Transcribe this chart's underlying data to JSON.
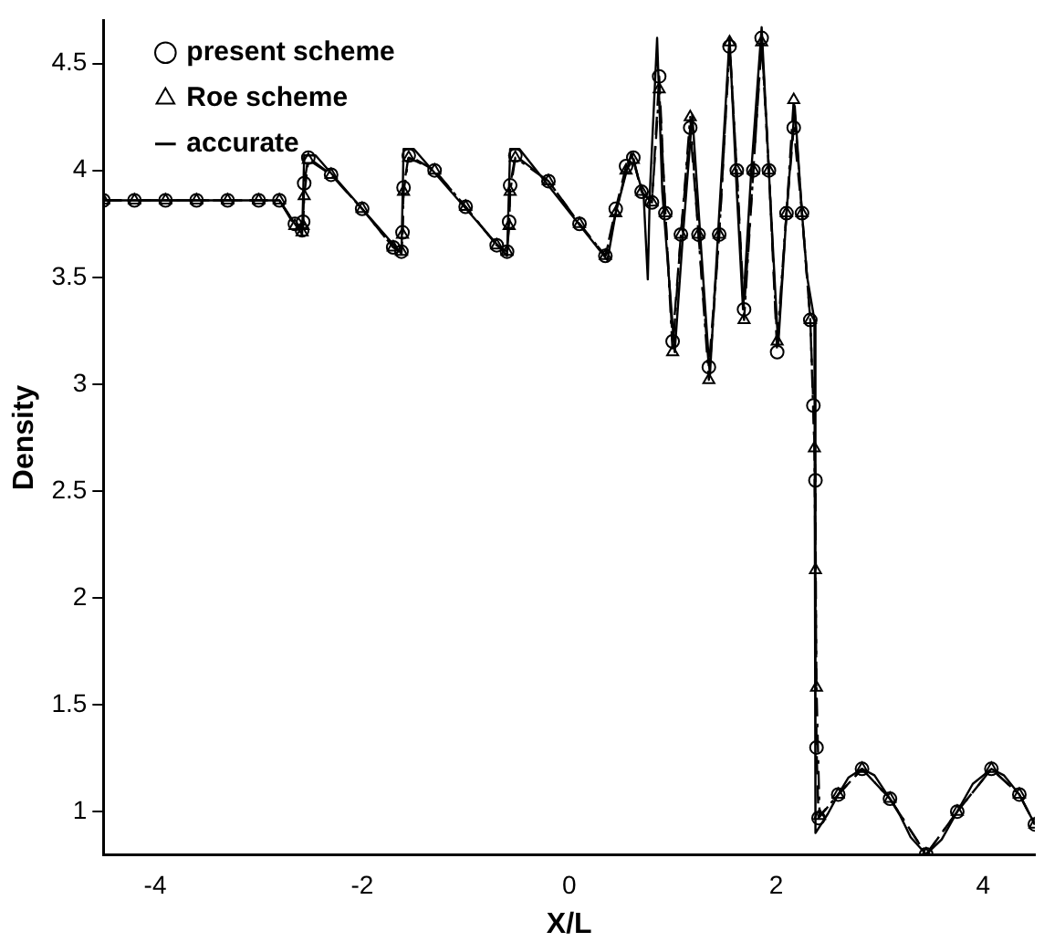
{
  "chart_data": {
    "type": "line",
    "xlabel": "X/L",
    "ylabel": "Density",
    "xlim": [
      -4.5,
      4.5
    ],
    "xticks": [
      -4,
      -2,
      0,
      2,
      4
    ],
    "ylim": [
      0.8,
      4.7
    ],
    "yticks": [
      1,
      1.5,
      2,
      2.5,
      3,
      3.5,
      4,
      4.5
    ],
    "grid": false,
    "legend": "left",
    "series": [
      {
        "name": "present scheme",
        "color": "#000000",
        "marker": "circle",
        "line_style": "dashed",
        "x": [
          -4.5,
          -4.2,
          -3.9,
          -3.6,
          -3.3,
          -3.0,
          -2.8,
          -2.65,
          -2.58,
          -2.57,
          -2.56,
          -2.52,
          -2.3,
          -2.0,
          -1.7,
          -1.62,
          -1.61,
          -1.6,
          -1.55,
          -1.3,
          -1.0,
          -0.7,
          -0.6,
          -0.58,
          -0.57,
          -0.52,
          -0.2,
          0.1,
          0.35,
          0.45,
          0.55,
          0.62,
          0.7,
          0.8,
          0.87,
          0.93,
          1.0,
          1.08,
          1.17,
          1.25,
          1.35,
          1.45,
          1.55,
          1.62,
          1.69,
          1.78,
          1.86,
          1.93,
          2.01,
          2.1,
          2.17,
          2.25,
          2.33,
          2.36,
          2.38,
          2.39,
          2.41,
          2.6,
          2.83,
          3.1,
          3.45,
          3.75,
          4.08,
          4.35,
          4.5
        ],
        "values": [
          3.86,
          3.86,
          3.86,
          3.86,
          3.86,
          3.86,
          3.86,
          3.75,
          3.72,
          3.76,
          3.94,
          4.06,
          3.98,
          3.82,
          3.64,
          3.62,
          3.71,
          3.92,
          4.07,
          4.0,
          3.83,
          3.65,
          3.62,
          3.76,
          3.93,
          4.07,
          3.95,
          3.75,
          3.6,
          3.82,
          4.02,
          4.06,
          3.9,
          3.85,
          4.44,
          3.8,
          3.2,
          3.7,
          4.2,
          3.7,
          3.08,
          3.7,
          4.58,
          4.0,
          3.35,
          4.0,
          4.62,
          4.0,
          3.15,
          3.8,
          4.2,
          3.8,
          3.3,
          2.9,
          2.55,
          1.3,
          0.97,
          1.08,
          1.2,
          1.06,
          0.8,
          1.0,
          1.2,
          1.08,
          0.94
        ]
      },
      {
        "name": "Roe scheme",
        "color": "#000000",
        "marker": "triangle",
        "line_style": "dashdot",
        "x": [
          -4.5,
          -4.2,
          -3.9,
          -3.6,
          -3.3,
          -3.0,
          -2.8,
          -2.65,
          -2.58,
          -2.57,
          -2.56,
          -2.52,
          -2.3,
          -2.0,
          -1.7,
          -1.62,
          -1.61,
          -1.6,
          -1.55,
          -1.3,
          -1.0,
          -0.7,
          -0.6,
          -0.58,
          -0.57,
          -0.52,
          -0.2,
          0.1,
          0.35,
          0.45,
          0.55,
          0.62,
          0.7,
          0.8,
          0.87,
          0.93,
          1.0,
          1.08,
          1.17,
          1.25,
          1.35,
          1.45,
          1.55,
          1.62,
          1.69,
          1.78,
          1.86,
          1.93,
          2.01,
          2.1,
          2.17,
          2.25,
          2.33,
          2.37,
          2.38,
          2.39,
          2.42,
          2.6,
          2.83,
          3.1,
          3.45,
          3.75,
          4.08,
          4.35,
          4.5
        ],
        "values": [
          3.86,
          3.86,
          3.86,
          3.86,
          3.86,
          3.86,
          3.86,
          3.74,
          3.71,
          3.74,
          3.88,
          4.05,
          3.98,
          3.82,
          3.64,
          3.62,
          3.7,
          3.9,
          4.06,
          4.0,
          3.83,
          3.65,
          3.62,
          3.74,
          3.9,
          4.06,
          3.95,
          3.75,
          3.6,
          3.8,
          4.0,
          4.05,
          3.9,
          3.85,
          4.38,
          3.8,
          3.15,
          3.7,
          4.25,
          3.7,
          3.02,
          3.7,
          4.6,
          4.0,
          3.3,
          4.0,
          4.6,
          4.0,
          3.2,
          3.8,
          4.33,
          3.8,
          3.3,
          2.7,
          2.13,
          1.58,
          0.98,
          1.08,
          1.2,
          1.06,
          0.8,
          1.0,
          1.2,
          1.08,
          0.94
        ]
      },
      {
        "name": "accurate",
        "color": "#000000",
        "marker": "none",
        "line_style": "solid",
        "x": [
          -4.5,
          -2.8,
          -2.58,
          -2.56,
          -2.45,
          -1.62,
          -1.6,
          -1.5,
          -0.6,
          -0.57,
          -0.48,
          0.37,
          0.45,
          0.6,
          0.72,
          0.76,
          0.78,
          0.85,
          0.9,
          1.02,
          1.1,
          1.19,
          1.28,
          1.36,
          1.45,
          1.55,
          1.62,
          1.68,
          1.76,
          1.86,
          1.94,
          2.02,
          2.1,
          2.18,
          2.25,
          2.3,
          2.37,
          2.38,
          2.5,
          2.6,
          2.7,
          2.83,
          2.95,
          3.1,
          3.2,
          3.3,
          3.45,
          3.6,
          3.75,
          3.9,
          4.08,
          4.2,
          4.35,
          4.5
        ],
        "values": [
          3.86,
          3.86,
          3.7,
          4.07,
          4.07,
          3.61,
          4.1,
          4.1,
          3.6,
          4.1,
          4.1,
          3.58,
          3.8,
          4.08,
          3.88,
          3.49,
          3.9,
          4.62,
          3.9,
          3.15,
          3.7,
          4.26,
          3.6,
          3.04,
          3.8,
          4.62,
          3.9,
          3.35,
          4.0,
          4.67,
          3.9,
          3.18,
          3.8,
          4.3,
          3.8,
          3.5,
          3.3,
          0.9,
          0.99,
          1.08,
          1.16,
          1.2,
          1.17,
          1.06,
          0.98,
          0.88,
          0.8,
          0.87,
          1.0,
          1.13,
          1.2,
          1.17,
          1.08,
          0.94
        ]
      }
    ]
  }
}
